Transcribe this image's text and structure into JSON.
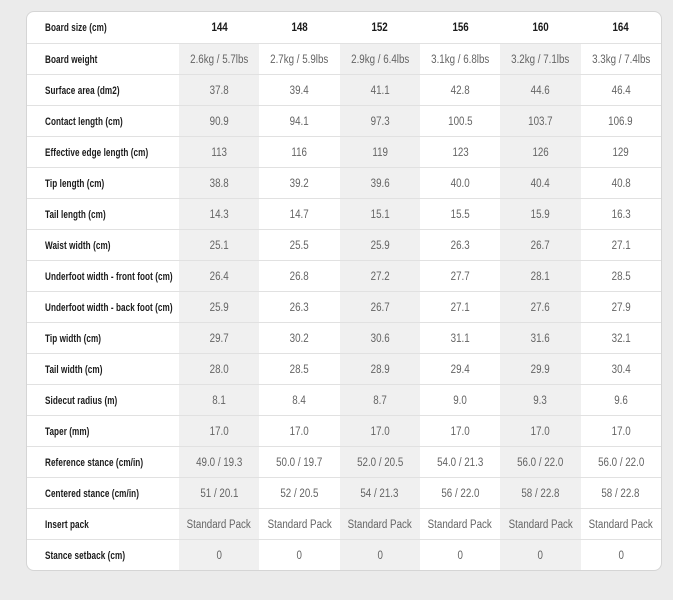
{
  "colors": {
    "page_bg": "#ebebeb",
    "table_bg": "#ffffff",
    "stripe_bg": "#f0f0f0",
    "border": "#d5d5d5",
    "divider": "#e1e1e1",
    "label_text": "#1a1a1a",
    "value_text": "#646464"
  },
  "chart_data": {
    "type": "table",
    "header_label": "Board size (cm)",
    "columns": [
      "144",
      "148",
      "152",
      "156",
      "160",
      "164"
    ],
    "rows": [
      {
        "label": "Board weight",
        "values": [
          "2.6kg / 5.7lbs",
          "2.7kg / 5.9lbs",
          "2.9kg / 6.4lbs",
          "3.1kg / 6.8lbs",
          "3.2kg / 7.1lbs",
          "3.3kg / 7.4lbs"
        ]
      },
      {
        "label": "Surface area (dm2)",
        "values": [
          "37.8",
          "39.4",
          "41.1",
          "42.8",
          "44.6",
          "46.4"
        ]
      },
      {
        "label": "Contact length (cm)",
        "values": [
          "90.9",
          "94.1",
          "97.3",
          "100.5",
          "103.7",
          "106.9"
        ]
      },
      {
        "label": "Effective edge length (cm)",
        "values": [
          "113",
          "116",
          "119",
          "123",
          "126",
          "129"
        ]
      },
      {
        "label": "Tip length (cm)",
        "values": [
          "38.8",
          "39.2",
          "39.6",
          "40.0",
          "40.4",
          "40.8"
        ]
      },
      {
        "label": "Tail length (cm)",
        "values": [
          "14.3",
          "14.7",
          "15.1",
          "15.5",
          "15.9",
          "16.3"
        ]
      },
      {
        "label": "Waist width (cm)",
        "values": [
          "25.1",
          "25.5",
          "25.9",
          "26.3",
          "26.7",
          "27.1"
        ]
      },
      {
        "label": "Underfoot width - front foot (cm)",
        "values": [
          "26.4",
          "26.8",
          "27.2",
          "27.7",
          "28.1",
          "28.5"
        ]
      },
      {
        "label": "Underfoot width - back foot (cm)",
        "values": [
          "25.9",
          "26.3",
          "26.7",
          "27.1",
          "27.6",
          "27.9"
        ]
      },
      {
        "label": "Tip width (cm)",
        "values": [
          "29.7",
          "30.2",
          "30.6",
          "31.1",
          "31.6",
          "32.1"
        ]
      },
      {
        "label": "Tail width (cm)",
        "values": [
          "28.0",
          "28.5",
          "28.9",
          "29.4",
          "29.9",
          "30.4"
        ]
      },
      {
        "label": "Sidecut radius (m)",
        "values": [
          "8.1",
          "8.4",
          "8.7",
          "9.0",
          "9.3",
          "9.6"
        ]
      },
      {
        "label": "Taper (mm)",
        "values": [
          "17.0",
          "17.0",
          "17.0",
          "17.0",
          "17.0",
          "17.0"
        ]
      },
      {
        "label": "Reference stance (cm/in)",
        "values": [
          "49.0 / 19.3",
          "50.0 / 19.7",
          "52.0 / 20.5",
          "54.0 / 21.3",
          "56.0 / 22.0",
          "56.0 / 22.0"
        ]
      },
      {
        "label": "Centered stance (cm/in)",
        "values": [
          "51 / 20.1",
          "52 / 20.5",
          "54 / 21.3",
          "56 / 22.0",
          "58 / 22.8",
          "58 / 22.8"
        ]
      },
      {
        "label": "Insert pack",
        "values": [
          "Standard Pack",
          "Standard Pack",
          "Standard Pack",
          "Standard Pack",
          "Standard Pack",
          "Standard Pack"
        ]
      },
      {
        "label": "Stance setback (cm)",
        "values": [
          "0",
          "0",
          "0",
          "0",
          "0",
          "0"
        ]
      }
    ]
  }
}
